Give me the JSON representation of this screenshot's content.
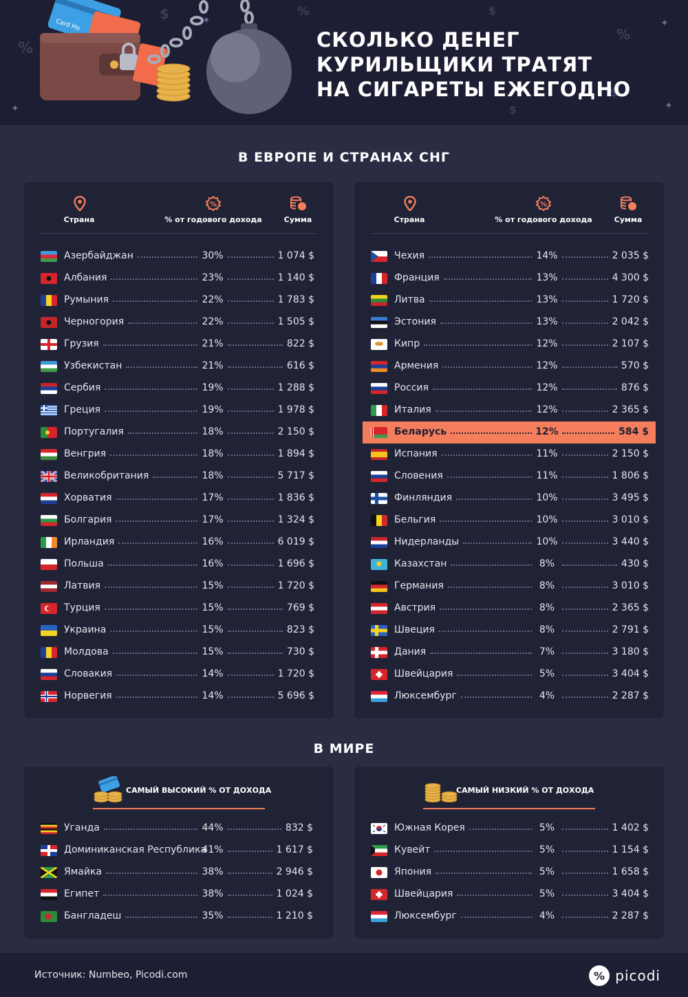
{
  "header": {
    "title_lines": [
      "СКОЛЬКО ДЕНЕГ",
      "КУРИЛЬЩИКИ ТРАТЯТ",
      "НА СИГАРЕТЫ ЕЖЕГОДНО"
    ],
    "card_text": "Card Ho"
  },
  "section_europe": {
    "title": "В ЕВРОПЕ И СТРАНАХ СНГ"
  },
  "columns": {
    "country": "Страна",
    "percent": "% от годового дохода",
    "amount": "Сумма"
  },
  "europe_left": [
    {
      "country": "Азербайджан",
      "pct": "30%",
      "amount": "1 074 $",
      "flag": "az"
    },
    {
      "country": "Албания",
      "pct": "23%",
      "amount": "1 140 $",
      "flag": "al"
    },
    {
      "country": "Румыния",
      "pct": "22%",
      "amount": "1 783 $",
      "flag": "ro"
    },
    {
      "country": "Черногория",
      "pct": "22%",
      "amount": "1 505 $",
      "flag": "me"
    },
    {
      "country": "Грузия",
      "pct": "21%",
      "amount": "822 $",
      "flag": "ge"
    },
    {
      "country": "Узбекистан",
      "pct": "21%",
      "amount": "616 $",
      "flag": "uz"
    },
    {
      "country": "Сербия",
      "pct": "19%",
      "amount": "1 288 $",
      "flag": "rs"
    },
    {
      "country": "Греция",
      "pct": "19%",
      "amount": "1 978 $",
      "flag": "gr"
    },
    {
      "country": "Португалия",
      "pct": "18%",
      "amount": "2 150 $",
      "flag": "pt"
    },
    {
      "country": "Венгрия",
      "pct": "18%",
      "amount": "1 894 $",
      "flag": "hu"
    },
    {
      "country": "Великобритания",
      "pct": "18%",
      "amount": "5 717 $",
      "flag": "gb"
    },
    {
      "country": "Хорватия",
      "pct": "17%",
      "amount": "1 836 $",
      "flag": "hr"
    },
    {
      "country": "Болгария",
      "pct": "17%",
      "amount": "1 324 $",
      "flag": "bg"
    },
    {
      "country": "Ирландия",
      "pct": "16%",
      "amount": "6 019 $",
      "flag": "ie"
    },
    {
      "country": "Польша",
      "pct": "16%",
      "amount": "1 696 $",
      "flag": "pl"
    },
    {
      "country": "Латвия",
      "pct": "15%",
      "amount": "1 720 $",
      "flag": "lv"
    },
    {
      "country": "Турция",
      "pct": "15%",
      "amount": "769 $",
      "flag": "tr"
    },
    {
      "country": "Украина",
      "pct": "15%",
      "amount": "823 $",
      "flag": "ua"
    },
    {
      "country": "Молдова",
      "pct": "15%",
      "amount": "730 $",
      "flag": "md"
    },
    {
      "country": "Словакия",
      "pct": "14%",
      "amount": "1 720 $",
      "flag": "sk"
    },
    {
      "country": "Норвегия",
      "pct": "14%",
      "amount": "5 696 $",
      "flag": "no"
    }
  ],
  "europe_right": [
    {
      "country": "Чехия",
      "pct": "14%",
      "amount": "2 035 $",
      "flag": "cz"
    },
    {
      "country": "Франция",
      "pct": "13%",
      "amount": "4 300 $",
      "flag": "fr"
    },
    {
      "country": "Литва",
      "pct": "13%",
      "amount": "1 720 $",
      "flag": "lt"
    },
    {
      "country": "Эстония",
      "pct": "13%",
      "amount": "2 042 $",
      "flag": "ee"
    },
    {
      "country": "Кипр",
      "pct": "12%",
      "amount": "2 107 $",
      "flag": "cy"
    },
    {
      "country": "Армения",
      "pct": "12%",
      "amount": "570 $",
      "flag": "am"
    },
    {
      "country": "Россия",
      "pct": "12%",
      "amount": "876 $",
      "flag": "ru"
    },
    {
      "country": "Италия",
      "pct": "12%",
      "amount": "2 365 $",
      "flag": "it"
    },
    {
      "country": "Беларусь",
      "pct": "12%",
      "amount": "584 $",
      "flag": "by",
      "highlight": true
    },
    {
      "country": "Испания",
      "pct": "11%",
      "amount": "2 150 $",
      "flag": "es"
    },
    {
      "country": "Словения",
      "pct": "11%",
      "amount": "1 806 $",
      "flag": "si"
    },
    {
      "country": "Финляндия",
      "pct": "10%",
      "amount": "3 495 $",
      "flag": "fi"
    },
    {
      "country": "Бельгия",
      "pct": "10%",
      "amount": "3 010 $",
      "flag": "be"
    },
    {
      "country": "Нидерланды",
      "pct": "10%",
      "amount": "3 440 $",
      "flag": "nl"
    },
    {
      "country": "Казахстан",
      "pct": "8%",
      "amount": "430 $",
      "flag": "kz"
    },
    {
      "country": "Германия",
      "pct": "8%",
      "amount": "3 010 $",
      "flag": "de"
    },
    {
      "country": "Австрия",
      "pct": "8%",
      "amount": "2 365 $",
      "flag": "at"
    },
    {
      "country": "Швеция",
      "pct": "8%",
      "amount": "2 791 $",
      "flag": "se"
    },
    {
      "country": "Дания",
      "pct": "7%",
      "amount": "3 180 $",
      "flag": "dk"
    },
    {
      "country": "Швейцария",
      "pct": "5%",
      "amount": "3 404 $",
      "flag": "ch"
    },
    {
      "country": "Люксембург",
      "pct": "4%",
      "amount": "2 287 $",
      "flag": "lu"
    }
  ],
  "section_world": {
    "title": "В МИРЕ"
  },
  "world_high": {
    "title": "САМЫЙ ВЫСОКИЙ % ОТ ДОХОДА",
    "rows": [
      {
        "country": "Уганда",
        "pct": "44%",
        "amount": "832 $",
        "flag": "ug"
      },
      {
        "country": "Доминиканская Республика",
        "pct": "41%",
        "amount": "1 617 $",
        "flag": "do"
      },
      {
        "country": "Ямайка",
        "pct": "38%",
        "amount": "2 946 $",
        "flag": "jm"
      },
      {
        "country": "Египет",
        "pct": "38%",
        "amount": "1 024 $",
        "flag": "eg"
      },
      {
        "country": "Бангладеш",
        "pct": "35%",
        "amount": "1 210 $",
        "flag": "bd"
      }
    ]
  },
  "world_low": {
    "title": "САМЫЙ НИЗКИЙ % ОТ ДОХОДА",
    "rows": [
      {
        "country": "Южная Корея",
        "pct": "5%",
        "amount": "1 402 $",
        "flag": "kr"
      },
      {
        "country": "Кувейт",
        "pct": "5%",
        "amount": "1 154 $",
        "flag": "kw"
      },
      {
        "country": "Япония",
        "pct": "5%",
        "amount": "1 658 $",
        "flag": "jp"
      },
      {
        "country": "Швейцария",
        "pct": "5%",
        "amount": "3 404 $",
        "flag": "ch"
      },
      {
        "country": "Люксембург",
        "pct": "4%",
        "amount": "2 287 $",
        "flag": "lu"
      }
    ]
  },
  "footer": {
    "source": "Источник: Numbeo, Picodi.com",
    "logo": "picodi"
  },
  "colors": {
    "accent": "#f47e5b",
    "bg": "#2a2c44",
    "card": "#202236",
    "header": "#1d1e33"
  }
}
